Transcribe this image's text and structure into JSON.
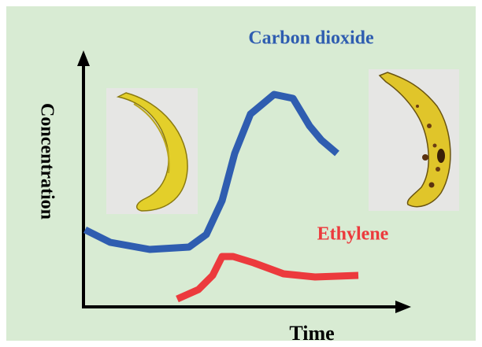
{
  "diagram": {
    "curves": [
      {
        "label": "Carbon dioxide"
      },
      {
        "label": "Ethylene"
      }
    ],
    "y_axis": {
      "label": "Concentration"
    },
    "x_axis": {
      "label": "Time"
    }
  }
}
